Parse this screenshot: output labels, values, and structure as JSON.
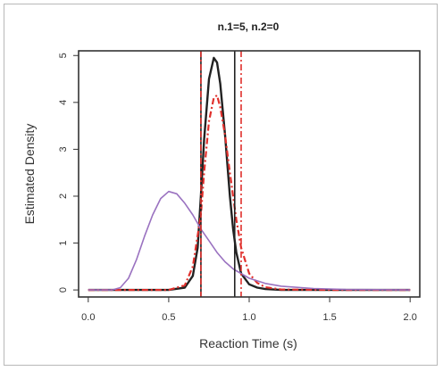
{
  "chart_data": {
    "type": "line",
    "title": "n.1=5, n.2=0",
    "xlabel": "Reaction Time (s)",
    "ylabel": "Estimated Density",
    "xlim": [
      -0.06,
      2.06
    ],
    "ylim": [
      -0.15,
      5.1
    ],
    "x_ticks": [
      "0.0",
      "0.5",
      "1.0",
      "1.5",
      "2.0"
    ],
    "y_ticks": [
      "0",
      "1",
      "2",
      "3",
      "4",
      "5"
    ],
    "grid": false,
    "legend": "none",
    "series": [
      {
        "color": "#222222",
        "style": "solid",
        "x": [
          0.0,
          0.5,
          0.6,
          0.65,
          0.68,
          0.7,
          0.72,
          0.75,
          0.78,
          0.8,
          0.82,
          0.85,
          0.88,
          0.9,
          0.92,
          0.95,
          1.0,
          1.05,
          1.1,
          1.2,
          1.5,
          2.0
        ],
        "values": [
          0.0,
          0.0,
          0.05,
          0.3,
          0.9,
          2.0,
          3.2,
          4.5,
          4.95,
          4.85,
          4.4,
          3.3,
          2.0,
          1.3,
          0.8,
          0.35,
          0.12,
          0.05,
          0.02,
          0.0,
          0.0,
          0.0
        ]
      },
      {
        "color": "#e0302c",
        "style": "dashdot",
        "x": [
          0.0,
          0.5,
          0.6,
          0.65,
          0.7,
          0.72,
          0.75,
          0.78,
          0.8,
          0.82,
          0.85,
          0.88,
          0.9,
          0.92,
          0.95,
          1.0,
          1.05,
          1.1,
          1.2,
          1.5,
          2.0
        ],
        "values": [
          0.0,
          0.0,
          0.1,
          0.5,
          1.6,
          2.5,
          3.6,
          4.1,
          4.15,
          3.9,
          3.3,
          2.5,
          2.0,
          1.5,
          0.9,
          0.35,
          0.15,
          0.06,
          0.01,
          0.0,
          0.0
        ]
      },
      {
        "color": "#9a72c0",
        "style": "solid",
        "x": [
          0.0,
          0.15,
          0.2,
          0.25,
          0.3,
          0.35,
          0.4,
          0.45,
          0.5,
          0.55,
          0.6,
          0.65,
          0.7,
          0.75,
          0.8,
          0.85,
          0.9,
          1.0,
          1.1,
          1.2,
          1.4,
          1.6,
          2.0
        ],
        "values": [
          0.0,
          0.0,
          0.05,
          0.25,
          0.65,
          1.15,
          1.6,
          1.95,
          2.1,
          2.05,
          1.85,
          1.6,
          1.3,
          1.05,
          0.8,
          0.6,
          0.45,
          0.25,
          0.14,
          0.08,
          0.03,
          0.01,
          0.0
        ]
      }
    ],
    "vlines": [
      {
        "x": 0.7,
        "color": "#222222",
        "style": "solid"
      },
      {
        "x": 0.91,
        "color": "#222222",
        "style": "solid"
      },
      {
        "x": 0.7,
        "color": "#e0302c",
        "style": "dashdot"
      },
      {
        "x": 0.95,
        "color": "#e0302c",
        "style": "dashdot"
      }
    ]
  }
}
